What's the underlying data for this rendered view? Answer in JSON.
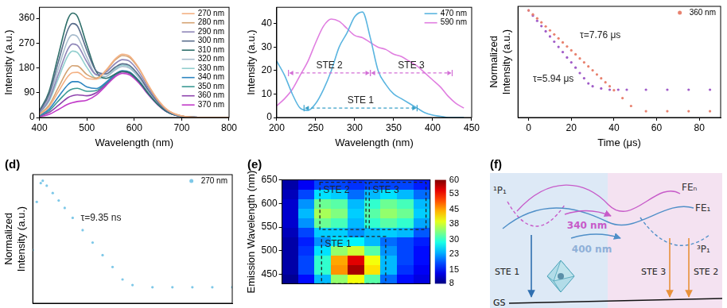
{
  "chart_data": [
    {
      "type": "line",
      "x_label": "Wavelength (nm)",
      "y_label": "Intensity (a.u.)",
      "x": [
        400,
        420,
        440,
        460,
        470,
        480,
        500,
        520,
        540,
        560,
        575,
        590,
        610,
        630,
        650,
        670,
        700,
        750,
        800
      ],
      "series": [
        {
          "name": "270 nm",
          "color": "#f4b183",
          "values": [
            10,
            38,
            94,
            149,
            163,
            164,
            142,
            139,
            171,
            213,
            230,
            223,
            179,
            117,
            64,
            28,
            6,
            0,
            0
          ]
        },
        {
          "name": "280 nm",
          "color": "#d4a373",
          "values": [
            12,
            44,
            109,
            173,
            188,
            187,
            156,
            143,
            169,
            209,
            225,
            218,
            176,
            115,
            63,
            27,
            6,
            0,
            0
          ]
        },
        {
          "name": "290 nm",
          "color": "#8f86b8",
          "values": [
            17,
            64,
            157,
            248,
            267,
            262,
            202,
            156,
            164,
            196,
            210,
            204,
            164,
            107,
            59,
            25,
            5,
            0,
            0
          ]
        },
        {
          "name": "300 nm",
          "color": "#5a6e8c",
          "values": [
            22,
            83,
            203,
            319,
            341,
            332,
            244,
            168,
            158,
            183,
            195,
            189,
            152,
            99,
            55,
            23,
            5,
            0,
            0
          ]
        },
        {
          "name": "310 nm",
          "color": "#2f6f6a",
          "values": [
            24,
            93,
            227,
            357,
            379,
            367,
            263,
            166,
            142,
            158,
            168,
            163,
            131,
            86,
            47,
            20,
            4,
            0,
            0
          ]
        },
        {
          "name": "320 nm",
          "color": "#a8bccd",
          "values": [
            19,
            73,
            179,
            281,
            300,
            293,
            218,
            154,
            149,
            173,
            185,
            179,
            144,
            94,
            52,
            22,
            5,
            0,
            0
          ]
        },
        {
          "name": "330 nm",
          "color": "#93cfcf",
          "values": [
            15,
            58,
            142,
            224,
            241,
            236,
            182,
            141,
            148,
            177,
            190,
            184,
            148,
            97,
            53,
            23,
            5,
            0,
            0
          ]
        },
        {
          "name": "340 nm",
          "color": "#2e86c1",
          "values": [
            8,
            30,
            75,
            119,
            130,
            130,
            111,
            105,
            127,
            158,
            170,
            165,
            133,
            87,
            48,
            20,
            4,
            0,
            0
          ]
        },
        {
          "name": "350 nm",
          "color": "#3c9a94",
          "values": [
            6,
            24,
            60,
            95,
            104,
            106,
            95,
            98,
            124,
            156,
            168,
            163,
            131,
            86,
            47,
            20,
            4,
            0,
            0
          ]
        },
        {
          "name": "360 nm",
          "color": "#8e44ad",
          "values": [
            5,
            18,
            44,
            72,
            79,
            82,
            79,
            90,
            120,
            153,
            165,
            160,
            129,
            84,
            46,
            20,
            4,
            0,
            0
          ]
        },
        {
          "name": "370 nm",
          "color": "#c23bc9",
          "values": [
            3,
            11,
            29,
            48,
            54,
            58,
            63,
            82,
            115,
            148,
            160,
            155,
            125,
            82,
            45,
            19,
            4,
            0,
            0
          ]
        }
      ],
      "xlim": [
        400,
        800
      ],
      "xticks": [
        400,
        500,
        600,
        700,
        800
      ],
      "ylim": [
        0,
        400
      ],
      "yticks": [
        0,
        90,
        180,
        270,
        360
      ],
      "legend": "upper right"
    },
    {
      "type": "line",
      "x_label": "Wavelength (nm)",
      "y_label": "Intensity (a.u.)",
      "x": [
        200,
        210,
        220,
        230,
        240,
        250,
        260,
        270,
        280,
        290,
        300,
        310,
        320,
        330,
        340,
        350,
        360,
        370,
        380,
        390,
        400,
        410,
        420,
        430,
        440
      ],
      "series": [
        {
          "name": "470 nm",
          "color": "#5bb5e0",
          "values": [
            24,
            18,
            10,
            4,
            3,
            6,
            12,
            20,
            30,
            36,
            43,
            45,
            34,
            20,
            14,
            10,
            8,
            6,
            4,
            2,
            1,
            0.5,
            0,
            0,
            0
          ]
        },
        {
          "name": "590 nm",
          "color": "#e07ee0",
          "values": [
            5,
            8,
            12,
            18,
            24,
            32,
            39,
            42,
            41,
            38,
            35,
            34,
            32,
            30,
            29,
            27,
            26,
            24,
            22,
            19,
            16,
            13,
            9,
            6,
            4
          ]
        }
      ],
      "annotations": [
        {
          "text": "STE 2",
          "x": [
            215,
            320
          ],
          "y": 19,
          "color": "#d36fd6"
        },
        {
          "text": "STE 3",
          "x": [
            320,
            425
          ],
          "y": 19,
          "color": "#d36fd6"
        },
        {
          "text": "STE 1",
          "x": [
            235,
            380
          ],
          "y": 4,
          "color": "#3aa0c8"
        }
      ],
      "xlim": [
        200,
        450
      ],
      "xticks": [
        200,
        250,
        300,
        350,
        400,
        450
      ],
      "ylim": [
        0,
        47
      ],
      "yticks": [
        0,
        10,
        20,
        30,
        40
      ],
      "legend": "upper right"
    },
    {
      "type": "scatter",
      "x_label": "Time (μs)",
      "y_label": "Normalized Intensity (a.u.)",
      "log": "y",
      "tick_labels": "x",
      "series": [
        {
          "name": "360 nm",
          "color": "#e8826f",
          "x": [
            0,
            2,
            4,
            6,
            8,
            10,
            12,
            14,
            16,
            18,
            20,
            22,
            24,
            26,
            28,
            30,
            32,
            34,
            36,
            38,
            40,
            44,
            48,
            55,
            65,
            75,
            85
          ],
          "values": [
            1,
            0.773,
            0.597,
            0.462,
            0.357,
            0.276,
            0.213,
            0.165,
            0.127,
            0.098,
            0.076,
            0.059,
            0.045,
            0.035,
            0.027,
            0.021,
            0.016,
            0.0125,
            0.0097,
            0.0075,
            0.0058,
            0.0035,
            0.0021,
            0.0015,
            0.0015,
            0.0015,
            0.0015
          ]
        },
        {
          "color": "#a05cc8",
          "x": [
            0,
            2,
            4,
            6,
            8,
            10,
            12,
            14,
            16,
            18,
            20,
            22,
            24,
            26,
            28,
            30,
            34,
            38,
            42,
            46,
            55,
            65,
            75,
            85
          ],
          "values": [
            1,
            0.714,
            0.51,
            0.364,
            0.26,
            0.186,
            0.133,
            0.095,
            0.068,
            0.048,
            0.035,
            0.025,
            0.0176,
            0.0126,
            0.009,
            0.0075,
            0.0065,
            0.006,
            0.006,
            0.006,
            0.006,
            0.006,
            0.006,
            0.006
          ]
        }
      ],
      "annotations": [
        {
          "text": "τ=7.76 μs",
          "x": 24,
          "y": 0.2
        },
        {
          "text": "τ=5.94 μs",
          "x": 2,
          "y": 0.012
        }
      ],
      "xlim": [
        -5,
        90
      ],
      "xticks": [
        0,
        20,
        40,
        60,
        80
      ],
      "ylim": [
        0.001,
        1.3
      ],
      "legend": "upper right"
    },
    {
      "type": "scatter",
      "title": "(d)",
      "y_label": "Normalized Intensity (a.u.)",
      "log": "y",
      "tick_labels": false,
      "series": [
        {
          "name": "270 nm",
          "color": "#7ec8e8",
          "x": [
            0,
            2,
            4,
            5,
            7,
            10,
            13,
            16,
            20,
            25,
            30,
            35,
            40,
            45,
            50,
            60,
            70,
            80,
            90,
            100
          ],
          "values": [
            0.05,
            0.4,
            0.9,
            1,
            0.807,
            0.586,
            0.425,
            0.308,
            0.201,
            0.118,
            0.069,
            0.04,
            0.024,
            0.014,
            0.011,
            0.01,
            0.01,
            0.01,
            0.01,
            0.01
          ]
        }
      ],
      "annotations": [
        {
          "text": "τ=9.35 ns",
          "x": 24,
          "y": 0.2
        }
      ],
      "xlim": [
        0,
        100
      ],
      "ylim": [
        0.005,
        1.3
      ],
      "legend": "upper right"
    },
    {
      "type": "heatmap",
      "title": "(e)",
      "y_label": "Emission Wavelength (nm)",
      "tick_labels": "y",
      "x": [
        240,
        260,
        280,
        300,
        320,
        340,
        360,
        380,
        400
      ],
      "y": [
        440,
        460,
        480,
        500,
        520,
        540,
        560,
        580,
        600,
        620,
        640
      ],
      "values": [
        [
          9,
          15,
          24,
          35,
          40,
          32,
          20,
          15,
          13
        ],
        [
          10,
          18,
          30,
          46,
          58,
          42,
          24,
          17,
          14
        ],
        [
          10,
          18,
          30,
          45,
          55,
          40,
          24,
          18,
          15
        ],
        [
          10,
          17,
          26,
          35,
          38,
          32,
          22,
          18,
          15
        ],
        [
          10,
          16,
          22,
          26,
          27,
          24,
          20,
          18,
          16
        ],
        [
          11,
          18,
          25,
          25,
          22,
          24,
          25,
          24,
          19
        ],
        [
          12,
          22,
          33,
          31,
          24,
          30,
          32,
          30,
          23
        ],
        [
          12,
          24,
          36,
          34,
          25,
          32,
          35,
          33,
          25
        ],
        [
          12,
          22,
          33,
          32,
          24,
          30,
          33,
          31,
          24
        ],
        [
          11,
          18,
          26,
          25,
          20,
          24,
          26,
          24,
          20
        ],
        [
          10,
          14,
          18,
          18,
          17,
          18,
          18,
          18,
          16
        ]
      ],
      "colorbar": {
        "range": [
          8,
          60
        ],
        "ticks": [
          8,
          15,
          23,
          30,
          38,
          45,
          53,
          60
        ]
      },
      "annotations": [
        {
          "text": "STE 1",
          "x": [
            278,
            356
          ],
          "y": [
            430,
            530
          ],
          "color": "#222222"
        },
        {
          "text": "STE 2",
          "x": [
            276,
            332
          ],
          "y": [
            545,
            645
          ],
          "color": "#222222"
        },
        {
          "text": "STE 3",
          "x": [
            336,
            405
          ],
          "y": [
            545,
            645
          ],
          "color": "#222222"
        }
      ],
      "xlim": [
        230,
        410
      ],
      "ylim": [
        430,
        650
      ],
      "yticks": [
        450,
        500,
        550,
        600,
        650
      ]
    }
  ],
  "diagram": {
    "title": "(f)",
    "states": {
      "singlet": "¹P₁",
      "fe_n": "FEₙ",
      "fe_1": "FE₁",
      "triplet": "³P₁",
      "ground": "GS"
    },
    "excitation": {
      "pink": "340 nm",
      "blue": "400 nm"
    },
    "emission": {
      "ste1": "STE 1",
      "ste3": "STE 3",
      "ste2": "STE 2"
    }
  }
}
